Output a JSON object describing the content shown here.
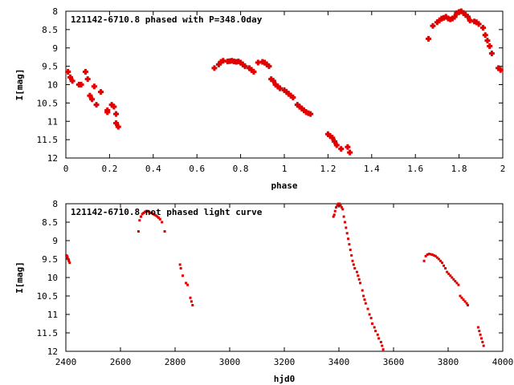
{
  "chart_data": [
    {
      "type": "scatter",
      "title": "121142-6710.8 phased with P=348.0day",
      "xlabel": "phase",
      "ylabel": "I[mag]",
      "xlim": [
        0,
        2
      ],
      "ylim": [
        8,
        12
      ],
      "y_inverted": true,
      "grid": false,
      "legend": "none",
      "x_ticks": [
        0,
        0.2,
        0.4,
        0.6,
        0.8,
        1,
        1.2,
        1.4,
        1.6,
        1.8,
        2
      ],
      "x_tick_labels": [
        "0",
        "0.2",
        "0.4",
        "0.6",
        "0.8",
        "1",
        "1.2",
        "1.4",
        "1.6",
        "1.8",
        "2"
      ],
      "y_ticks": [
        8,
        8.5,
        9,
        9.5,
        10,
        10.5,
        11,
        11.5,
        12
      ],
      "y_tick_labels": [
        "8",
        "8.5",
        "9",
        "9.5",
        "10",
        "10.5",
        "11",
        "11.5",
        "12"
      ],
      "marker_color": "#e00000",
      "series": [
        {
          "x": [
            0.01,
            0.02,
            0.03,
            0.06,
            0.07,
            0.09,
            0.1,
            0.11,
            0.12,
            0.13,
            0.14,
            0.16,
            0.19,
            0.19,
            0.21,
            0.22,
            0.23,
            0.23,
            0.24,
            0.68,
            0.7,
            0.71,
            0.72,
            0.74,
            0.75,
            0.76,
            0.77,
            0.78,
            0.79,
            0.8,
            0.81,
            0.82,
            0.84,
            0.85,
            0.86,
            0.88,
            0.9,
            0.91,
            0.92,
            0.93,
            0.94,
            0.95,
            0.96,
            0.97,
            0.98,
            1.0,
            1.01,
            1.02,
            1.03,
            1.04,
            1.06,
            1.07,
            1.08,
            1.09,
            1.1,
            1.11,
            1.12,
            1.2,
            1.21,
            1.22,
            1.23,
            1.24,
            1.26,
            1.29,
            1.3,
            1.66,
            1.68,
            1.7,
            1.71,
            1.72,
            1.73,
            1.74,
            1.75,
            1.76,
            1.77,
            1.78,
            1.79,
            1.8,
            1.81,
            1.82,
            1.83,
            1.84,
            1.85,
            1.87,
            1.88,
            1.89,
            1.91,
            1.92,
            1.93,
            1.94,
            1.95,
            1.98,
            1.99
          ],
          "y": [
            9.65,
            9.8,
            9.9,
            10.0,
            10.0,
            9.65,
            9.85,
            10.3,
            10.4,
            10.05,
            10.55,
            10.2,
            10.75,
            10.7,
            10.55,
            10.6,
            11.05,
            10.8,
            11.15,
            9.55,
            9.45,
            9.38,
            9.35,
            9.37,
            9.36,
            9.35,
            9.37,
            9.38,
            9.37,
            9.4,
            9.45,
            9.5,
            9.55,
            9.6,
            9.65,
            9.4,
            9.38,
            9.4,
            9.45,
            9.5,
            9.85,
            9.9,
            10.0,
            10.05,
            10.1,
            10.15,
            10.2,
            10.25,
            10.3,
            10.35,
            10.55,
            10.6,
            10.65,
            10.7,
            10.75,
            10.78,
            10.8,
            11.35,
            11.4,
            11.45,
            11.55,
            11.65,
            11.75,
            11.7,
            11.85,
            8.75,
            8.4,
            8.3,
            8.25,
            8.2,
            8.18,
            8.15,
            8.2,
            8.22,
            8.2,
            8.15,
            8.05,
            8.02,
            8.0,
            8.05,
            8.1,
            8.15,
            8.25,
            8.28,
            8.3,
            8.35,
            8.45,
            8.65,
            8.8,
            8.95,
            9.15,
            9.55,
            9.6
          ]
        }
      ]
    },
    {
      "type": "scatter",
      "title": "121142-6710.8 not phased light curve",
      "xlabel": "hjd0",
      "ylabel": "I[mag]",
      "xlim": [
        2400,
        4000
      ],
      "ylim": [
        8,
        12
      ],
      "y_inverted": true,
      "grid": false,
      "legend": "none",
      "x_ticks": [
        2400,
        2600,
        2800,
        3000,
        3200,
        3400,
        3600,
        3800,
        4000
      ],
      "x_tick_labels": [
        "2400",
        "2600",
        "2800",
        "3000",
        "3200",
        "3400",
        "3600",
        "3800",
        "4000"
      ],
      "y_ticks": [
        8,
        8.5,
        9,
        9.5,
        10,
        10.5,
        11,
        11.5,
        12
      ],
      "y_tick_labels": [
        "8",
        "8.5",
        "9",
        "9.5",
        "10",
        "10.5",
        "11",
        "11.5",
        "12"
      ],
      "marker_color": "#e00000",
      "series": [
        {
          "x": [
            2402,
            2404,
            2406,
            2408,
            2411,
            2414,
            2666,
            2670,
            2675,
            2680,
            2685,
            2690,
            2695,
            2700,
            2705,
            2710,
            2715,
            2720,
            2725,
            2730,
            2735,
            2740,
            2745,
            2752,
            2762,
            2818,
            2821,
            2828,
            2840,
            2846,
            2856,
            2860,
            2864,
            3380,
            3383,
            3386,
            3390,
            3394,
            3398,
            3402,
            3406,
            3410,
            3414,
            3418,
            3422,
            3426,
            3430,
            3434,
            3438,
            3442,
            3446,
            3450,
            3454,
            3458,
            3466,
            3470,
            3474,
            3478,
            3486,
            3490,
            3494,
            3498,
            3506,
            3512,
            3518,
            3522,
            3530,
            3534,
            3542,
            3546,
            3554,
            3558,
            3562,
            3712,
            3718,
            3724,
            3730,
            3736,
            3742,
            3748,
            3754,
            3760,
            3766,
            3772,
            3778,
            3784,
            3790,
            3796,
            3802,
            3808,
            3814,
            3820,
            3826,
            3832,
            3838,
            3844,
            3850,
            3856,
            3862,
            3868,
            3872,
            3910,
            3914,
            3918,
            3922,
            3926,
            3930
          ],
          "y": [
            9.4,
            9.42,
            9.45,
            9.5,
            9.55,
            9.6,
            8.75,
            8.45,
            8.35,
            8.28,
            8.25,
            8.22,
            8.2,
            8.2,
            8.22,
            8.25,
            8.25,
            8.28,
            8.3,
            8.32,
            8.35,
            8.38,
            8.42,
            8.5,
            8.75,
            9.65,
            9.75,
            9.95,
            10.15,
            10.2,
            10.55,
            10.65,
            10.75,
            8.35,
            8.3,
            8.2,
            8.1,
            8.05,
            8.0,
            8.0,
            8.05,
            8.1,
            8.15,
            8.35,
            8.5,
            8.65,
            8.8,
            8.95,
            9.1,
            9.25,
            9.4,
            9.55,
            9.65,
            9.75,
            9.85,
            9.95,
            10.05,
            10.15,
            10.35,
            10.5,
            10.6,
            10.7,
            10.85,
            11.0,
            11.1,
            11.25,
            11.35,
            11.45,
            11.55,
            11.65,
            11.75,
            11.85,
            11.95,
            9.55,
            9.42,
            9.38,
            9.36,
            9.37,
            9.38,
            9.4,
            9.42,
            9.46,
            9.5,
            9.55,
            9.6,
            9.68,
            9.75,
            9.85,
            9.9,
            9.95,
            10.0,
            10.05,
            10.1,
            10.15,
            10.2,
            10.5,
            10.55,
            10.6,
            10.65,
            10.7,
            10.75,
            11.35,
            11.45,
            11.55,
            11.65,
            11.75,
            11.85
          ]
        }
      ]
    }
  ]
}
